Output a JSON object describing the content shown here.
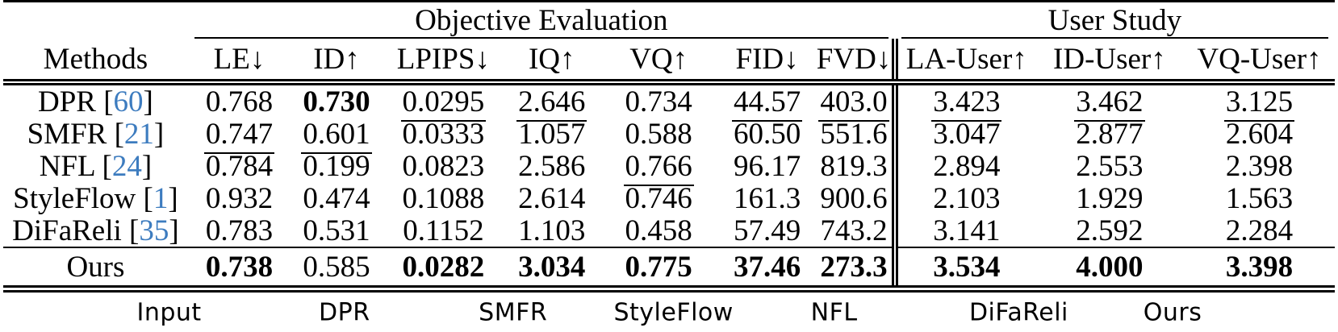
{
  "table": {
    "group_headers": [
      {
        "label": "Objective Evaluation"
      },
      {
        "label": "User Study"
      }
    ],
    "methods_header": "Methods",
    "columns": [
      "LE↓",
      "ID↑",
      "LPIPS↓",
      "IQ↑",
      "VQ↑",
      "FID↓",
      "FVD↓",
      "LA-User↑",
      "ID-User↑",
      "VQ-User↑"
    ],
    "user_study_first_column": "LA-User↑",
    "rows": [
      {
        "method": "DPR",
        "cite": "60",
        "values": [
          {
            "t": "0.768"
          },
          {
            "t": "0.730",
            "s": "b"
          },
          {
            "t": "0.0295",
            "s": "u"
          },
          {
            "t": "2.646",
            "s": "u"
          },
          {
            "t": "0.734"
          },
          {
            "t": "44.57",
            "s": "u"
          },
          {
            "t": "403.0",
            "s": "u"
          },
          {
            "t": "3.423",
            "s": "u"
          },
          {
            "t": "3.462",
            "s": "u"
          },
          {
            "t": "3.125",
            "s": "u"
          }
        ]
      },
      {
        "method": "SMFR",
        "cite": "21",
        "values": [
          {
            "t": "0.747",
            "s": "u"
          },
          {
            "t": "0.601",
            "s": "u"
          },
          {
            "t": "0.0333"
          },
          {
            "t": "1.057"
          },
          {
            "t": "0.588"
          },
          {
            "t": "60.50"
          },
          {
            "t": "551.6"
          },
          {
            "t": "3.047"
          },
          {
            "t": "2.877"
          },
          {
            "t": "2.604"
          }
        ]
      },
      {
        "method": "NFL",
        "cite": "24",
        "values": [
          {
            "t": "0.784"
          },
          {
            "t": "0.199"
          },
          {
            "t": "0.0823"
          },
          {
            "t": "2.586"
          },
          {
            "t": "0.766",
            "s": "u"
          },
          {
            "t": "96.17"
          },
          {
            "t": "819.3"
          },
          {
            "t": "2.894"
          },
          {
            "t": "2.553"
          },
          {
            "t": "2.398"
          }
        ]
      },
      {
        "method": "StyleFlow",
        "cite": "1",
        "values": [
          {
            "t": "0.932"
          },
          {
            "t": "0.474"
          },
          {
            "t": "0.1088"
          },
          {
            "t": "2.614"
          },
          {
            "t": "0.746"
          },
          {
            "t": "161.3"
          },
          {
            "t": "900.6"
          },
          {
            "t": "2.103"
          },
          {
            "t": "1.929"
          },
          {
            "t": "1.563"
          }
        ]
      },
      {
        "method": "DiFaReli",
        "cite": "35",
        "values": [
          {
            "t": "0.783"
          },
          {
            "t": "0.531"
          },
          {
            "t": "0.1152"
          },
          {
            "t": "1.103"
          },
          {
            "t": "0.458"
          },
          {
            "t": "57.49"
          },
          {
            "t": "743.2"
          },
          {
            "t": "3.141"
          },
          {
            "t": "2.592"
          },
          {
            "t": "2.284"
          }
        ]
      },
      {
        "method": "Ours",
        "cite": null,
        "is_ours": true,
        "values": [
          {
            "t": "0.738",
            "s": "b"
          },
          {
            "t": "0.585"
          },
          {
            "t": "0.0282",
            "s": "b"
          },
          {
            "t": "3.034",
            "s": "b"
          },
          {
            "t": "0.775",
            "s": "b"
          },
          {
            "t": "37.46",
            "s": "b"
          },
          {
            "t": "273.3",
            "s": "b"
          },
          {
            "t": "3.534",
            "s": "b"
          },
          {
            "t": "4.000",
            "s": "b"
          },
          {
            "t": "3.398",
            "s": "b"
          }
        ]
      }
    ]
  },
  "figure_labels": [
    "Input",
    "DPR",
    "SMFR",
    "StyleFlow",
    "NFL",
    "DiFaReli",
    "Ours"
  ],
  "colors": {
    "citation_link": "#3d7cbf",
    "rule": "#000000",
    "text": "#000000"
  }
}
